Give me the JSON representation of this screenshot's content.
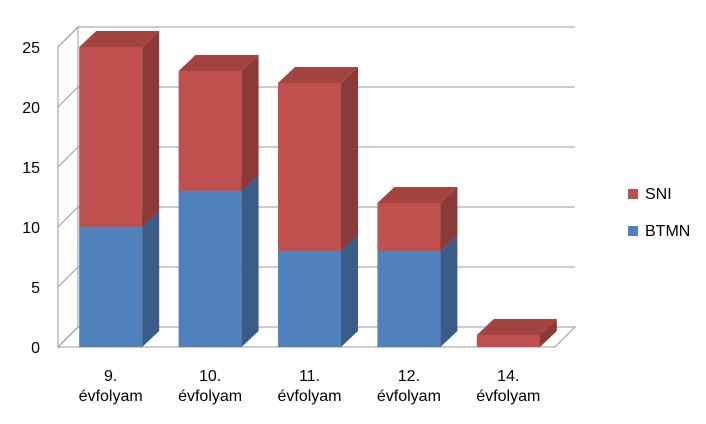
{
  "chart_data": {
    "type": "bar3d_stacked",
    "categories": [
      "9. évfolyam",
      "10. évfolyam",
      "11. évfolyam",
      "12. évfolyam",
      "14. évfolyam"
    ],
    "series": [
      {
        "name": "BTMN",
        "color": "#4f81bd",
        "values": [
          10,
          13,
          8,
          8,
          0
        ]
      },
      {
        "name": "SNI",
        "color": "#c0504d",
        "values": [
          15,
          10,
          14,
          4,
          1
        ]
      }
    ],
    "ylim": [
      0,
      25
    ],
    "yticks": [
      0,
      5,
      10,
      15,
      20,
      25
    ],
    "grid": true,
    "legend": "right"
  }
}
